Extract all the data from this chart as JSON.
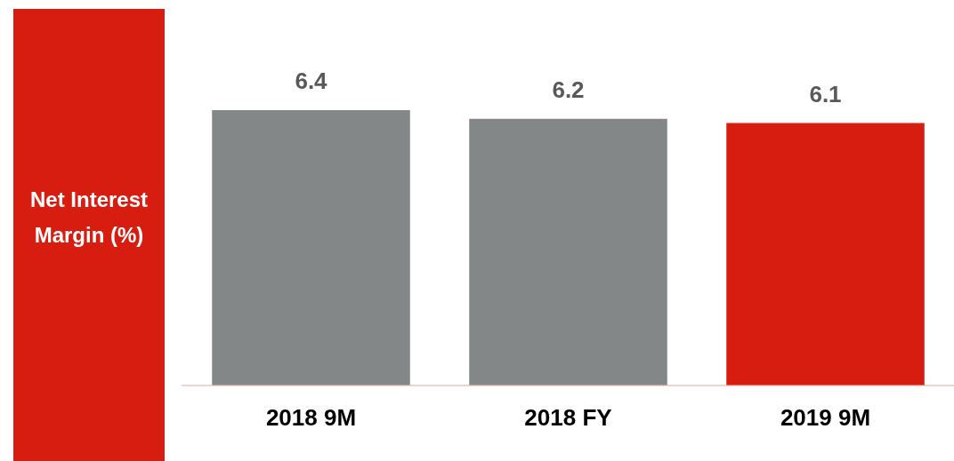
{
  "chart_data": {
    "type": "bar",
    "title": "Net Interest Margin (%)",
    "categories": [
      "2018 9M",
      "2018 FY",
      "2019 9M"
    ],
    "values": [
      6.4,
      6.2,
      6.1
    ],
    "colors": [
      "#848788",
      "#848788",
      "#d71c10"
    ],
    "ylim": [
      0,
      6.4
    ],
    "grid": false,
    "legend": false,
    "tick_labels": "x",
    "data_labels": true
  }
}
